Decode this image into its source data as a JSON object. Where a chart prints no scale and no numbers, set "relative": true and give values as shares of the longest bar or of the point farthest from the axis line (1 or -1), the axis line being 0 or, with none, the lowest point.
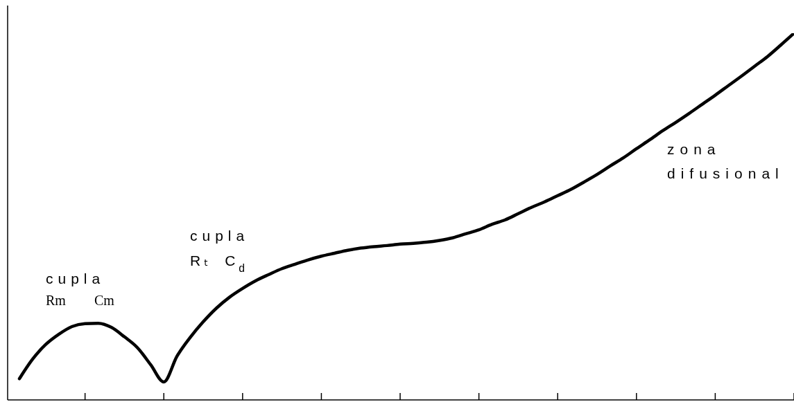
{
  "chart_data": {
    "type": "line",
    "relative": true,
    "categories": [
      null,
      null,
      null,
      null,
      null,
      null,
      null,
      null,
      null,
      null,
      null,
      null,
      null,
      null,
      null,
      null,
      null,
      null,
      null,
      null,
      null,
      null,
      null,
      null,
      null,
      null,
      null,
      null,
      null,
      null,
      null,
      null,
      null,
      null,
      null,
      null,
      null,
      null,
      null,
      null,
      null,
      null,
      null,
      null,
      null,
      null,
      null,
      null,
      null,
      null,
      null,
      null,
      null,
      null,
      null,
      null,
      null,
      null,
      null,
      null
    ],
    "values": [
      0.058,
      0.111,
      0.151,
      0.179,
      0.2,
      0.208,
      0.209,
      0.198,
      0.172,
      0.142,
      0.096,
      0.049,
      0.119,
      0.17,
      0.213,
      0.25,
      0.28,
      0.304,
      0.325,
      0.342,
      0.358,
      0.37,
      0.382,
      0.392,
      0.4,
      0.408,
      0.414,
      0.418,
      0.421,
      0.425,
      0.427,
      0.43,
      0.435,
      0.442,
      0.453,
      0.464,
      0.479,
      0.491,
      0.508,
      0.525,
      0.54,
      0.557,
      0.574,
      0.594,
      0.615,
      0.638,
      0.66,
      0.685,
      0.709,
      0.734,
      0.757,
      0.781,
      0.806,
      0.831,
      0.857,
      0.883,
      0.91,
      0.937,
      0.968,
      1
    ],
    "color": "#000000",
    "line_style": "solid",
    "annotations": [
      "cupla\nRm Cm",
      "cupla\nRₜ C$_{d}$",
      "zona\ndifusional"
    ]
  }
}
